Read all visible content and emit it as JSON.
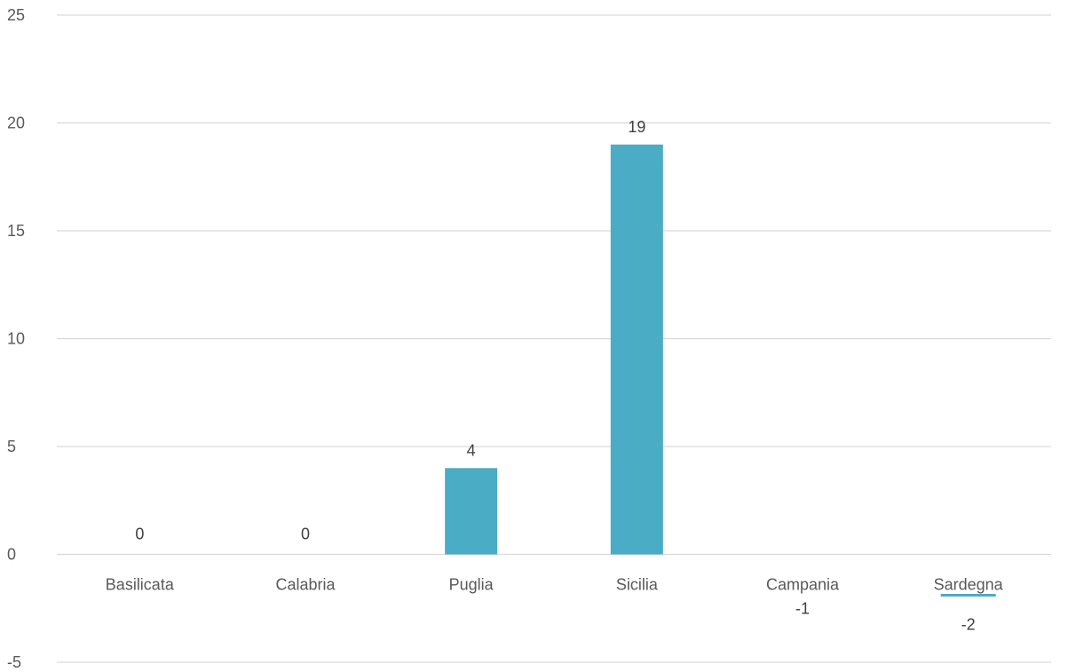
{
  "chart_data": {
    "type": "bar",
    "title": "",
    "xlabel": "",
    "ylabel": "",
    "categories": [
      "Basilicata",
      "Calabria",
      "Puglia",
      "Sicilia",
      "Campania",
      "Sardegna"
    ],
    "values": [
      0,
      0,
      4,
      19,
      -1,
      -2
    ],
    "data_labels": [
      "0",
      "0",
      "4",
      "19",
      "-1",
      "-2"
    ],
    "ylim": [
      -5,
      25
    ],
    "y_ticks": [
      -5,
      0,
      5,
      10,
      15,
      20,
      25
    ],
    "grid": true,
    "legend": "none",
    "colors": {
      "bar": "#4bacc6",
      "gridline": "#d9d9d9",
      "tick_text": "#595959",
      "label_text": "#404040"
    }
  }
}
